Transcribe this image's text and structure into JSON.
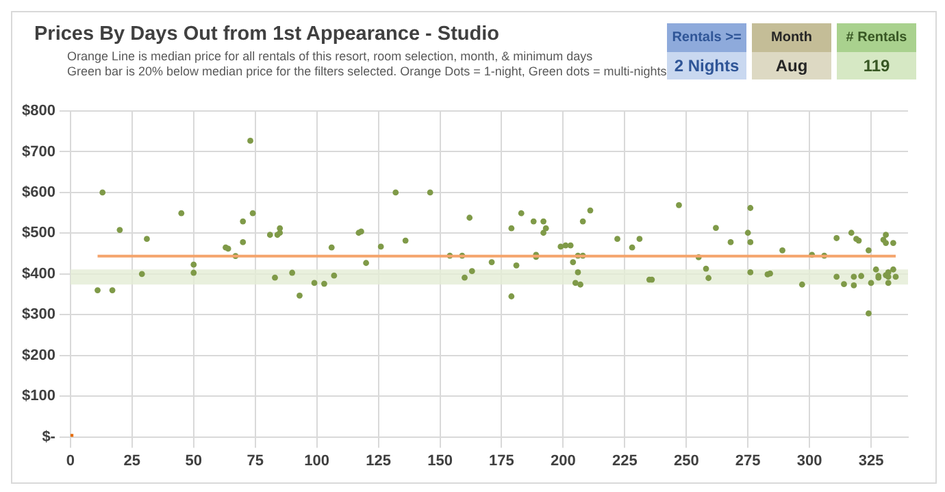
{
  "chart_data": {
    "type": "scatter",
    "title": "Prices By Days Out from 1st Appearance - Studio",
    "subtitle": "Orange Line is median price for all rentals of this resort, room selection, month, & minimum days\nGreen bar is 20% below median price for the filters selected. Orange Dots = 1-night, Green dots = multi-nights",
    "annotations": [
      "Rentals >=",
      "2 Nights",
      "Month",
      "Aug",
      "# Rentals",
      "119"
    ],
    "xlim": [
      0,
      340
    ],
    "xticks": [
      0,
      25,
      50,
      75,
      100,
      125,
      150,
      175,
      200,
      225,
      250,
      275,
      300,
      325
    ],
    "ylim": [
      0,
      800
    ],
    "yticks": [
      {
        "value": 0,
        "label": "$-"
      },
      {
        "value": 100,
        "label": "$100"
      },
      {
        "value": 200,
        "label": "$200"
      },
      {
        "value": 300,
        "label": "$300"
      },
      {
        "value": 400,
        "label": "$400"
      },
      {
        "value": 500,
        "label": "$500"
      },
      {
        "value": 600,
        "label": "$600"
      },
      {
        "value": 700,
        "label": "$700"
      },
      {
        "value": 800,
        "label": "$800"
      }
    ],
    "grid": true,
    "legend": false,
    "bands": [
      {
        "axis": "y",
        "from": 374,
        "to": 411,
        "color": "#e4ecd4"
      }
    ],
    "series": [
      {
        "type": "line",
        "color": "#f4a46c",
        "marker": "none",
        "x": [
          11,
          335
        ],
        "values": [
          444,
          444
        ]
      },
      {
        "color": "#e46c0a",
        "marker": "square",
        "x": [
          0
        ],
        "values": [
          0
        ]
      },
      {
        "color": "#7f9a48",
        "marker": "circle",
        "x": [
          11,
          13,
          17,
          20,
          29,
          31,
          45,
          50,
          50,
          63,
          64,
          67,
          70,
          70,
          73,
          74,
          81,
          83,
          84,
          85,
          85,
          90,
          93,
          99,
          103,
          106,
          107,
          117,
          118,
          120,
          126,
          132,
          136,
          146,
          154,
          159,
          160,
          162,
          163,
          171,
          179,
          179,
          181,
          183,
          188,
          189,
          189,
          192,
          192,
          193,
          199,
          201,
          203,
          204,
          205,
          206,
          206,
          207,
          208,
          208,
          211,
          222,
          228,
          231,
          235,
          236,
          247,
          255,
          258,
          259,
          262,
          268,
          275,
          276,
          276,
          276,
          283,
          284,
          289,
          297,
          301,
          306,
          311,
          311,
          314,
          317,
          318,
          318,
          319,
          320,
          321,
          324,
          324,
          325,
          327,
          328,
          328,
          330,
          331,
          331,
          331,
          332,
          332,
          332,
          334,
          334,
          335
        ],
        "values": [
          360,
          600,
          360,
          508,
          400,
          486,
          549,
          423,
          403,
          465,
          462,
          444,
          529,
          478,
          727,
          549,
          496,
          391,
          496,
          512,
          501,
          403,
          347,
          378,
          376,
          465,
          396,
          501,
          504,
          427,
          467,
          600,
          482,
          600,
          445,
          445,
          391,
          538,
          407,
          429,
          512,
          345,
          421,
          549,
          529,
          447,
          442,
          529,
          501,
          512,
          467,
          470,
          470,
          429,
          378,
          445,
          404,
          374,
          445,
          529,
          556,
          486,
          465,
          486,
          386,
          386,
          569,
          441,
          413,
          390,
          513,
          478,
          501,
          562,
          478,
          404,
          399,
          401,
          458,
          374,
          447,
          445,
          488,
          393,
          375,
          501,
          393,
          372,
          486,
          482,
          395,
          458,
          303,
          378,
          411,
          395,
          391,
          484,
          496,
          476,
          397,
          404,
          378,
          393,
          411,
          476,
          393
        ]
      }
    ]
  }
}
